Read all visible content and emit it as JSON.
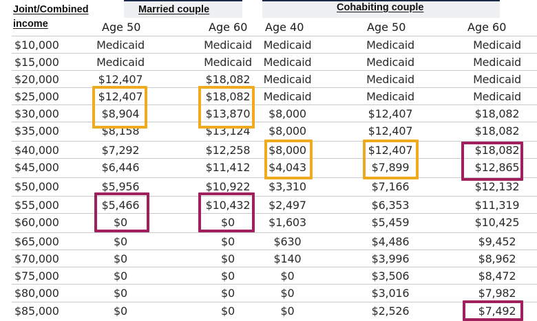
{
  "header": {
    "income_label_line1": "Joint/Combined",
    "income_label_line2": "income",
    "married_label": "Married couple",
    "cohabiting_label": "Cohabiting couple",
    "ages": [
      "Age 50",
      "Age 60",
      "Age 40",
      "Age 50",
      "Age 60"
    ]
  },
  "colors": {
    "highlight_orange": "#f0aa1e",
    "highlight_purple": "#a0205e"
  },
  "rows": [
    {
      "income": "$10,000",
      "cells": [
        "Medicaid",
        "Medicaid",
        "Medicaid",
        "Medicaid",
        "Medicaid"
      ]
    },
    {
      "income": "$15,000",
      "cells": [
        "Medicaid",
        "Medicaid",
        "Medicaid",
        "Medicaid",
        "Medicaid"
      ]
    },
    {
      "income": "$20,000",
      "cells": [
        "$12,407",
        "$18,082",
        "Medicaid",
        "Medicaid",
        "Medicaid"
      ]
    },
    {
      "income": "$25,000",
      "cells": [
        "$12,407",
        "$18,082",
        "Medicaid",
        "Medicaid",
        "Medicaid"
      ]
    },
    {
      "income": "$30,000",
      "cells": [
        "$8,904",
        "$13,870",
        "$8,000",
        "$12,407",
        "$18,082"
      ]
    },
    {
      "income": "$35,000",
      "cells": [
        "$8,158",
        "$13,124",
        "$8,000",
        "$12,407",
        "$18,082"
      ]
    },
    {
      "income": "$40,000",
      "cells": [
        "$7,292",
        "$12,258",
        "$8,000",
        "$12,407",
        "$18,082"
      ]
    },
    {
      "income": "$45,000",
      "cells": [
        "$6,446",
        "$11,412",
        "$4,043",
        "$7,899",
        "$12,865"
      ]
    },
    {
      "income": "$50,000",
      "cells": [
        "$5,956",
        "$10,922",
        "$3,310",
        "$7,166",
        "$12,132"
      ]
    },
    {
      "income": "$55,000",
      "cells": [
        "$5,466",
        "$10,432",
        "$2,497",
        "$6,353",
        "$11,319"
      ]
    },
    {
      "income": "$60,000",
      "cells": [
        "$0",
        "$0",
        "$1,603",
        "$5,459",
        "$10,425"
      ]
    },
    {
      "income": "$65,000",
      "cells": [
        "$0",
        "$0",
        "$630",
        "$4,486",
        "$9,452"
      ]
    },
    {
      "income": "$70,000",
      "cells": [
        "$0",
        "$0",
        "$140",
        "$3,996",
        "$8,962"
      ]
    },
    {
      "income": "$75,000",
      "cells": [
        "$0",
        "$0",
        "$0",
        "$3,506",
        "$8,472"
      ]
    },
    {
      "income": "$80,000",
      "cells": [
        "$0",
        "$0",
        "$0",
        "$3,016",
        "$7,982"
      ]
    },
    {
      "income": "$85,000",
      "cells": [
        "$0",
        "$0",
        "$0",
        "$2,526",
        "$7,492"
      ]
    }
  ]
}
